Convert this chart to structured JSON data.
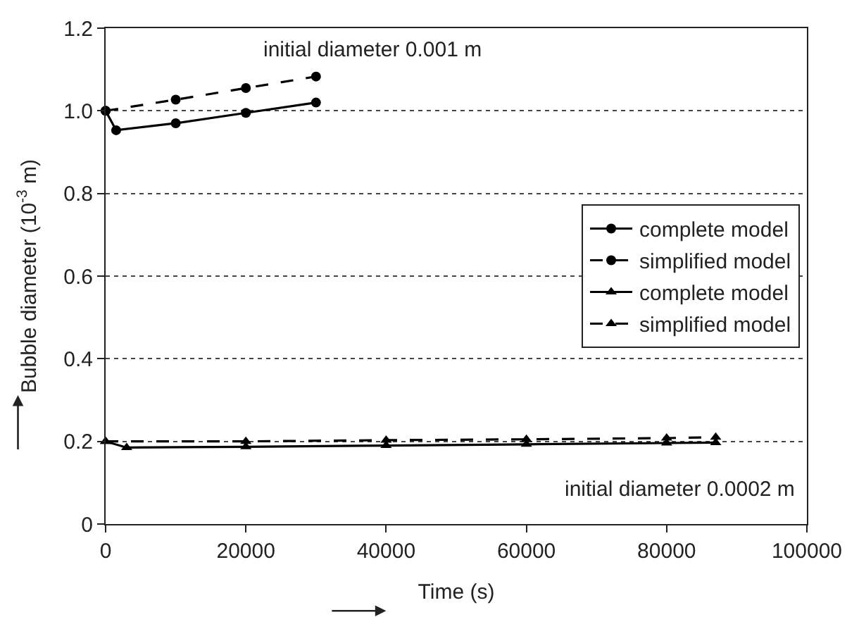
{
  "chart_data": {
    "type": "line",
    "xlabel": "Time (s)",
    "ylabel": "Bubble diameter (10$^{-3}$ m)",
    "xlim": [
      0,
      100000
    ],
    "xticks": [
      0,
      20000,
      40000,
      60000,
      80000,
      100000
    ],
    "ylim": [
      0,
      1.2
    ],
    "yticks": [
      0,
      {
        "value": 0.2,
        "label": "0.2"
      },
      {
        "value": 0.4,
        "label": "0.4"
      },
      {
        "value": 0.6,
        "label": "0.6"
      },
      {
        "value": 0.8,
        "label": "0.8"
      },
      {
        "value": 1.0,
        "label": "1.0"
      },
      {
        "value": 1.2,
        "label": "1.2"
      }
    ],
    "grid": "y",
    "legend": "right",
    "series": [
      {
        "name": "complete model",
        "color": "#000000",
        "marker": "circle",
        "line_style": "solid",
        "x": [
          0,
          1500,
          10000,
          20000,
          30000
        ],
        "values": [
          1.0,
          0.953,
          0.97,
          0.995,
          1.02
        ]
      },
      {
        "name": "simplified model",
        "color": "#000000",
        "marker": "circle",
        "line_style": "dashed",
        "x": [
          0,
          10000,
          20000,
          30000
        ],
        "values": [
          1.0,
          1.027,
          1.055,
          1.083
        ]
      },
      {
        "name": "complete model",
        "color": "#000000",
        "marker": "triangle",
        "line_style": "solid",
        "x": [
          0,
          3000,
          20000,
          40000,
          60000,
          80000,
          87000
        ],
        "values": [
          0.2,
          0.185,
          0.187,
          0.19,
          0.193,
          0.196,
          0.197
        ]
      },
      {
        "name": "simplified model",
        "color": "#000000",
        "marker": "triangle",
        "line_style": "dashed",
        "x": [
          0,
          20000,
          40000,
          60000,
          80000,
          87000
        ],
        "values": [
          0.2,
          0.2,
          0.203,
          0.205,
          0.208,
          0.21
        ]
      }
    ],
    "annotations": [
      "initial diameter 0.001 m",
      "initial diameter 0.0002 m"
    ]
  }
}
